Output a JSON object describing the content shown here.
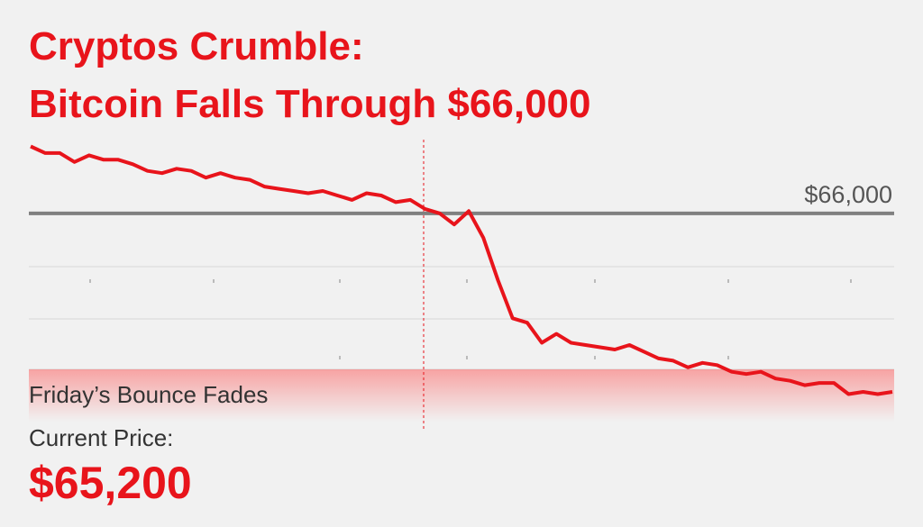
{
  "chart_data": {
    "type": "line",
    "title": [
      "Cryptos Crumble:",
      "Bitcoin Falls Through $66,000"
    ],
    "reference": {
      "value": 66000,
      "label": "$66,000"
    },
    "annotations": {
      "note": "Friday’s Bounce Fades",
      "price_label": "Current Price:",
      "price": "$65,200"
    },
    "color": "#e8141b",
    "ylim": [
      65180,
      66310
    ],
    "values": [
      66300,
      66270,
      66270,
      66230,
      66260,
      66240,
      66240,
      66220,
      66190,
      66180,
      66200,
      66190,
      66160,
      66180,
      66160,
      66150,
      66120,
      66110,
      66100,
      66090,
      66100,
      66080,
      66060,
      66090,
      66080,
      66050,
      66060,
      66020,
      66000,
      65950,
      66010,
      65890,
      65700,
      65530,
      65510,
      65420,
      65460,
      65420,
      65410,
      65400,
      65390,
      65410,
      65380,
      65350,
      65340,
      65310,
      65330,
      65320,
      65290,
      65280,
      65290,
      65260,
      65250,
      65230,
      65240,
      65240,
      65190,
      65200,
      65190,
      65200
    ]
  }
}
